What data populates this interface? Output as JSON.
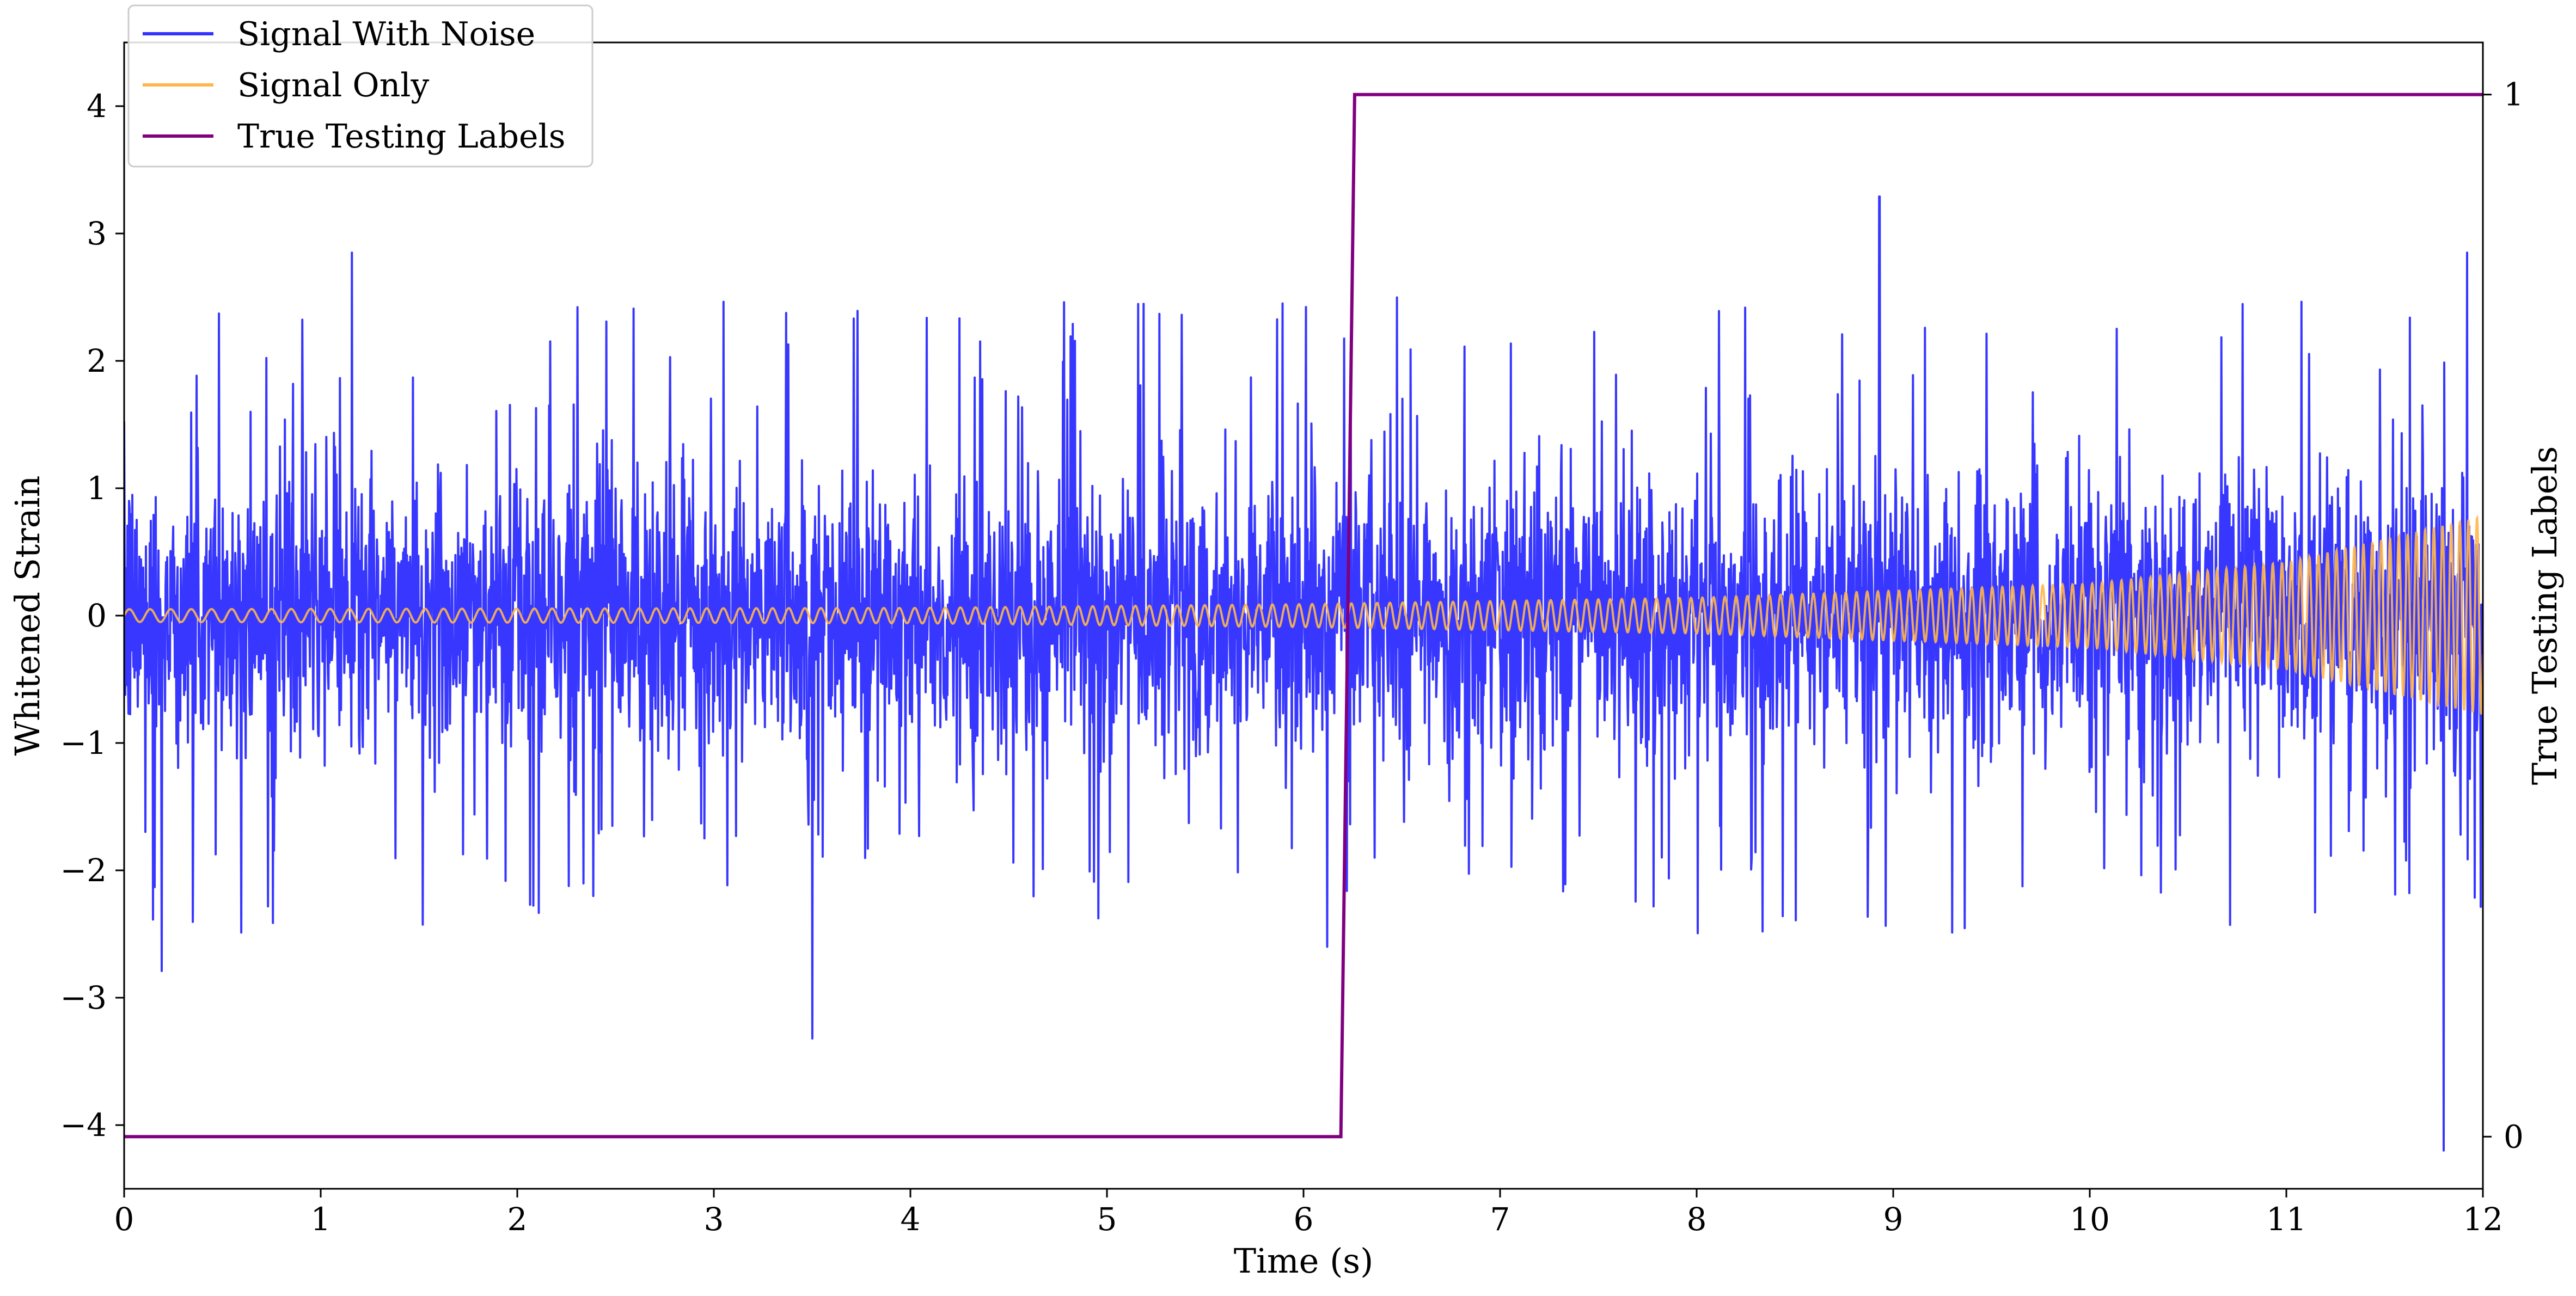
{
  "chart_data": {
    "type": "line",
    "title": "",
    "xlabel": "Time (s)",
    "ylabel": "Whitened Strain",
    "y2label": "True Testing Labels",
    "xlim": [
      0,
      12
    ],
    "ylim": [
      -4.5,
      4.5
    ],
    "y2lim": [
      -0.05,
      1.05
    ],
    "x_ticks": [
      0,
      1,
      2,
      3,
      4,
      5,
      6,
      7,
      8,
      9,
      10,
      11,
      12
    ],
    "y_ticks": [
      -4,
      -3,
      -2,
      -1,
      0,
      1,
      2,
      3,
      4
    ],
    "y_tick_labels": [
      "−4",
      "−3",
      "−2",
      "−1",
      "0",
      "1",
      "2",
      "3",
      "4"
    ],
    "y2_ticks": [
      0,
      1
    ],
    "y2_tick_labels": [
      "0",
      "1"
    ],
    "grid": false,
    "legend_position": "top-left",
    "series": [
      {
        "name": "Signal With Noise",
        "color": "#3333ff",
        "axis": "left",
        "description_values": {
          "mean": 0,
          "typical_range": [
            -1.5,
            1.5
          ],
          "spikes": [
            {
              "x": 1.16,
              "y": 2.85
            },
            {
              "x": 8.93,
              "y": 3.29
            },
            {
              "x": 3.5,
              "y": -3.32
            },
            {
              "x": 11.8,
              "y": -4.2
            },
            {
              "x": 0.19,
              "y": -2.79
            },
            {
              "x": 6.12,
              "y": -2.6
            },
            {
              "x": 11.92,
              "y": 2.85
            }
          ]
        }
      },
      {
        "name": "Signal Only",
        "color": "#ffb74d",
        "axis": "left",
        "envelope": [
          {
            "x": 0,
            "amp": 0.05
          },
          {
            "x": 4,
            "amp": 0.06
          },
          {
            "x": 6,
            "amp": 0.09
          },
          {
            "x": 8,
            "amp": 0.14
          },
          {
            "x": 10,
            "amp": 0.25
          },
          {
            "x": 11,
            "amp": 0.42
          },
          {
            "x": 12,
            "amp": 0.78
          }
        ]
      },
      {
        "name": "True Testing Labels",
        "color": "#800080",
        "axis": "right",
        "x": [
          0,
          6.19,
          6.26,
          12
        ],
        "y": [
          0,
          0,
          1,
          1
        ]
      }
    ]
  }
}
